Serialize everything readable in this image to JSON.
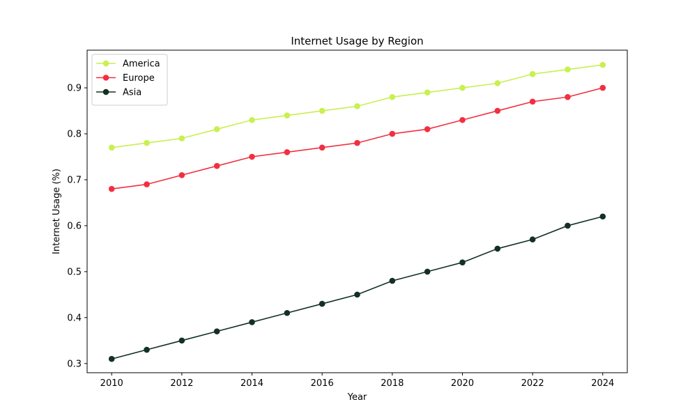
{
  "chart_data": {
    "type": "line",
    "title": "Internet Usage by Region",
    "xlabel": "Year",
    "ylabel": "Internet Usage (%)",
    "x": [
      2010,
      2011,
      2012,
      2013,
      2014,
      2015,
      2016,
      2017,
      2018,
      2019,
      2020,
      2021,
      2022,
      2023,
      2024
    ],
    "xticks": [
      2010,
      2012,
      2014,
      2016,
      2018,
      2020,
      2022,
      2024
    ],
    "xlim": [
      2009.3,
      2024.7
    ],
    "yticks": [
      0.3,
      0.4,
      0.5,
      0.6,
      0.7,
      0.8,
      0.9
    ],
    "ylim": [
      0.28,
      0.982
    ],
    "grid": false,
    "legend_position": "top-left",
    "series": [
      {
        "name": "America",
        "color": "#c8f04f",
        "values": [
          0.77,
          0.78,
          0.79,
          0.81,
          0.83,
          0.84,
          0.85,
          0.86,
          0.88,
          0.89,
          0.9,
          0.91,
          0.93,
          0.94,
          0.95
        ]
      },
      {
        "name": "Europe",
        "color": "#f22f41",
        "values": [
          0.68,
          0.69,
          0.71,
          0.73,
          0.75,
          0.76,
          0.77,
          0.78,
          0.8,
          0.81,
          0.83,
          0.85,
          0.87,
          0.88,
          0.9
        ]
      },
      {
        "name": "Asia",
        "color": "#133024",
        "values": [
          0.31,
          0.33,
          0.35,
          0.37,
          0.39,
          0.41,
          0.43,
          0.45,
          0.48,
          0.5,
          0.52,
          0.55,
          0.57,
          0.6,
          0.62
        ]
      }
    ]
  }
}
